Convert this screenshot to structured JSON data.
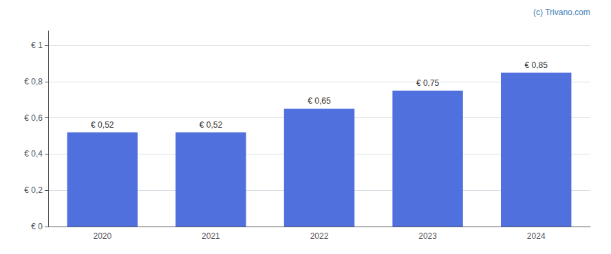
{
  "chart_data": {
    "type": "bar",
    "categories": [
      "2020",
      "2021",
      "2022",
      "2023",
      "2024"
    ],
    "values": [
      0.52,
      0.52,
      0.65,
      0.75,
      0.85
    ],
    "value_labels": [
      "€ 0,52",
      "€ 0,52",
      "€ 0,65",
      "€ 0,75",
      "€ 0,85"
    ],
    "data_labels": true,
    "ylim": [
      0,
      1.08
    ],
    "yticks": [
      {
        "value": 0,
        "label": "€ 0"
      },
      {
        "value": 0.2,
        "label": "€ 0,2"
      },
      {
        "value": 0.4,
        "label": "€ 0,4"
      },
      {
        "value": 0.6,
        "label": "€ 0,6"
      },
      {
        "value": 0.8,
        "label": "€ 0,8"
      },
      {
        "value": 1.0,
        "label": "€ 1"
      }
    ],
    "grid": true,
    "annotation": "(c) Trivano.com"
  }
}
